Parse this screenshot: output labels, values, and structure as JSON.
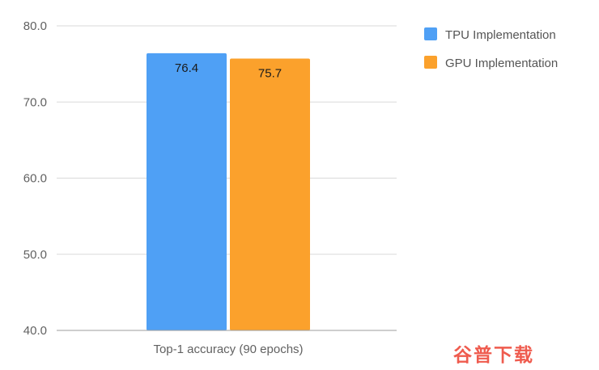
{
  "chart_data": {
    "type": "bar",
    "categories": [
      "Top-1 accuracy (90 epochs)"
    ],
    "series": [
      {
        "name": "TPU Implementation",
        "values": [
          76.4
        ],
        "color": "#4fa0f5"
      },
      {
        "name": "GPU Implementation",
        "values": [
          75.7
        ],
        "color": "#fba12c"
      }
    ],
    "data_labels": [
      "76.4",
      "75.7"
    ],
    "title": "",
    "xlabel": "",
    "ylabel": "",
    "ylim": [
      40,
      80
    ],
    "yticks": [
      40,
      50,
      60,
      70,
      80
    ],
    "ytick_labels": [
      "40.0",
      "50.0",
      "60.0",
      "70.0",
      "80.0"
    ],
    "grid": true,
    "legend_position": "top-right"
  },
  "watermark": {
    "text": "谷普下载",
    "color": "#ef5b4e"
  }
}
